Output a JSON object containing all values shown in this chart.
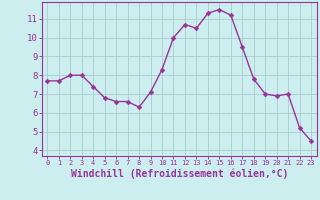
{
  "x": [
    0,
    1,
    2,
    3,
    4,
    5,
    6,
    7,
    8,
    9,
    10,
    11,
    12,
    13,
    14,
    15,
    16,
    17,
    18,
    19,
    20,
    21,
    22,
    23
  ],
  "y": [
    7.7,
    7.7,
    8.0,
    8.0,
    7.4,
    6.8,
    6.6,
    6.6,
    6.3,
    7.1,
    8.3,
    10.0,
    10.7,
    10.5,
    11.3,
    11.5,
    11.2,
    9.5,
    7.8,
    7.0,
    6.9,
    7.0,
    5.2,
    4.5
  ],
  "line_color": "#993399",
  "marker": "D",
  "marker_size": 2.5,
  "linewidth": 1.0,
  "xlabel": "Windchill (Refroidissement éolien,°C)",
  "xlabel_fontsize": 7,
  "ylabel_ticks": [
    4,
    5,
    6,
    7,
    8,
    9,
    10,
    11
  ],
  "xtick_labels": [
    "0",
    "1",
    "2",
    "3",
    "4",
    "5",
    "6",
    "7",
    "8",
    "9",
    "10",
    "11",
    "12",
    "13",
    "14",
    "15",
    "16",
    "17",
    "18",
    "19",
    "20",
    "21",
    "22",
    "23"
  ],
  "xlim": [
    -0.5,
    23.5
  ],
  "ylim": [
    3.7,
    11.9
  ],
  "background_color": "#cceeee",
  "grid_color": "#aacccc",
  "tick_color": "#993399",
  "spine_color": "#993399",
  "xlabel_color": "#993399",
  "ytick_fontsize": 6.5,
  "xtick_fontsize": 5.0
}
